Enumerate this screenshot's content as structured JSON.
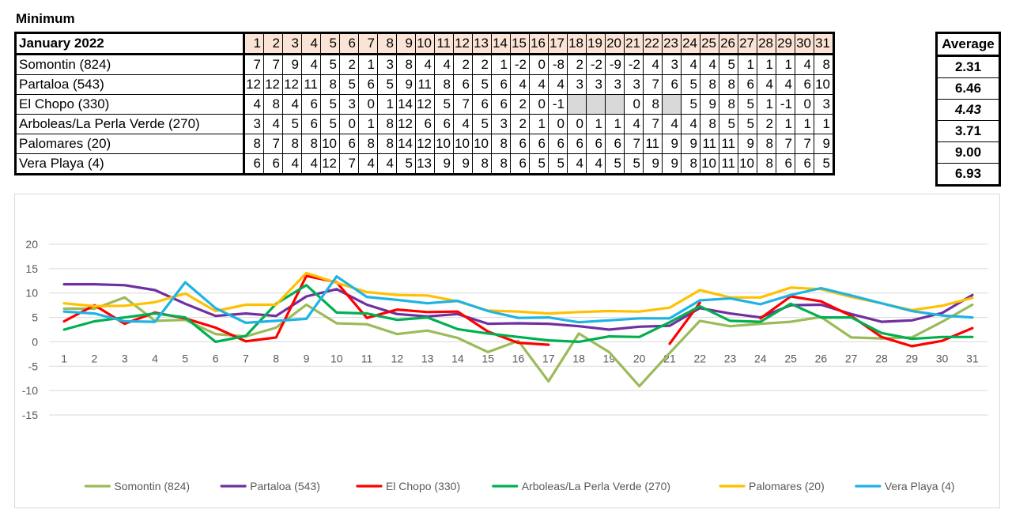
{
  "title": "Minimum",
  "table": {
    "header_label": "January 2022",
    "days": [
      "1",
      "2",
      "3",
      "4",
      "5",
      "6",
      "7",
      "8",
      "9",
      "10",
      "11",
      "12",
      "13",
      "14",
      "15",
      "16",
      "17",
      "18",
      "19",
      "20",
      "21",
      "22",
      "23",
      "24",
      "25",
      "26",
      "27",
      "28",
      "29",
      "30",
      "31"
    ],
    "average_label": "Average",
    "rows": [
      {
        "name": "Somontin (824)",
        "values": [
          "7",
          "7",
          "9",
          "4",
          "5",
          "2",
          "1",
          "3",
          "8",
          "4",
          "4",
          "2",
          "2",
          "1",
          "-2",
          "0",
          "-8",
          "2",
          "-2",
          "-9",
          "-2",
          "4",
          "3",
          "4",
          "4",
          "5",
          "1",
          "1",
          "1",
          "4",
          "8"
        ],
        "average": "2.31",
        "average_italic": false
      },
      {
        "name": "Partaloa (543)",
        "values": [
          "12",
          "12",
          "12",
          "11",
          "8",
          "5",
          "6",
          "5",
          "9",
          "11",
          "8",
          "6",
          "5",
          "6",
          "4",
          "4",
          "4",
          "3",
          "3",
          "3",
          "3",
          "7",
          "6",
          "5",
          "8",
          "8",
          "6",
          "4",
          "4",
          "6",
          "10"
        ],
        "average": "6.46",
        "average_italic": false
      },
      {
        "name": "El Chopo (330)",
        "values": [
          "4",
          "8",
          "4",
          "6",
          "5",
          "3",
          "0",
          "1",
          "14",
          "12",
          "5",
          "7",
          "6",
          "6",
          "2",
          "0",
          "-1",
          "",
          "",
          "",
          "0",
          "8",
          "",
          "5",
          "9",
          "8",
          "5",
          "1",
          "-1",
          "0",
          "3"
        ],
        "average": "4.43",
        "average_italic": true
      },
      {
        "name": "Arboleas/La Perla Verde (270)",
        "values": [
          "3",
          "4",
          "5",
          "6",
          "5",
          "0",
          "1",
          "8",
          "12",
          "6",
          "6",
          "4",
          "5",
          "3",
          "2",
          "1",
          "0",
          "0",
          "1",
          "1",
          "4",
          "7",
          "4",
          "4",
          "8",
          "5",
          "5",
          "2",
          "1",
          "1",
          "1"
        ],
        "average": "3.71",
        "average_italic": false
      },
      {
        "name": "Palomares (20)",
        "values": [
          "8",
          "7",
          "8",
          "8",
          "10",
          "6",
          "8",
          "8",
          "14",
          "12",
          "10",
          "10",
          "10",
          "8",
          "6",
          "6",
          "6",
          "6",
          "6",
          "6",
          "7",
          "11",
          "9",
          "9",
          "11",
          "11",
          "9",
          "8",
          "7",
          "7",
          "9"
        ],
        "average": "9.00",
        "average_italic": false
      },
      {
        "name": "Vera Playa (4)",
        "values": [
          "6",
          "6",
          "4",
          "4",
          "12",
          "7",
          "4",
          "4",
          "5",
          "13",
          "9",
          "9",
          "8",
          "8",
          "6",
          "5",
          "5",
          "4",
          "4",
          "5",
          "5",
          "9",
          "9",
          "8",
          "10",
          "11",
          "10",
          "8",
          "6",
          "6",
          "5"
        ],
        "average": "6.93",
        "average_italic": false
      }
    ]
  },
  "chart_data": {
    "type": "line",
    "title": "",
    "xlabel": "",
    "ylabel": "",
    "x": [
      1,
      2,
      3,
      4,
      5,
      6,
      7,
      8,
      9,
      10,
      11,
      12,
      13,
      14,
      15,
      16,
      17,
      18,
      19,
      20,
      21,
      22,
      23,
      24,
      25,
      26,
      27,
      28,
      29,
      30,
      31
    ],
    "x_ticks": [
      "1",
      "2",
      "3",
      "4",
      "5",
      "6",
      "7",
      "8",
      "9",
      "10",
      "11",
      "12",
      "13",
      "14",
      "15",
      "16",
      "17",
      "18",
      "19",
      "20",
      "21",
      "22",
      "23",
      "24",
      "25",
      "26",
      "27",
      "28",
      "29",
      "30",
      "31"
    ],
    "ylim": [
      -15,
      20
    ],
    "y_ticks": [
      20,
      15,
      10,
      5,
      0,
      -5,
      -10,
      -15
    ],
    "y_tick_labels": [
      "20",
      "15",
      "10",
      "5",
      "0",
      "-5",
      "-10",
      "-15"
    ],
    "grid": true,
    "legend_position": "bottom",
    "series": [
      {
        "name": "Somontin (824)",
        "color": "#9bbb59",
        "values": [
          6.8,
          6.8,
          9.1,
          4.3,
          4.5,
          1.6,
          1.1,
          2.9,
          7.6,
          3.8,
          3.6,
          1.6,
          2.3,
          0.8,
          -2.1,
          0.2,
          -8.1,
          1.7,
          -2.1,
          -9.1,
          -2.3,
          4.3,
          3.2,
          3.7,
          4.1,
          5.1,
          0.9,
          0.7,
          0.9,
          4.1,
          7.6
        ]
      },
      {
        "name": "Partaloa (543)",
        "color": "#7030a0",
        "values": [
          11.8,
          11.8,
          11.6,
          10.6,
          7.8,
          5.3,
          5.8,
          5.3,
          9.3,
          10.8,
          7.6,
          5.7,
          5.2,
          5.7,
          3.7,
          3.8,
          3.7,
          3.2,
          2.5,
          3.1,
          3.3,
          6.9,
          5.8,
          5.0,
          7.5,
          7.6,
          5.7,
          4.1,
          4.4,
          5.9,
          9.6
        ]
      },
      {
        "name": "El Chopo (330)",
        "color": "#ff0000",
        "values": [
          4.2,
          7.5,
          3.7,
          6.0,
          4.8,
          2.9,
          0.1,
          0.9,
          13.5,
          12.2,
          4.9,
          6.6,
          6.1,
          6.2,
          2.1,
          -0.2,
          -0.6,
          null,
          null,
          null,
          -0.4,
          8.0,
          null,
          4.8,
          9.3,
          8.3,
          5.3,
          1.0,
          -0.9,
          0.2,
          2.8
        ]
      },
      {
        "name": "Arboleas/La Perla Verde (270)",
        "color": "#00b050",
        "values": [
          2.5,
          4.2,
          5.0,
          5.8,
          5.0,
          0.0,
          1.2,
          7.8,
          11.6,
          6.0,
          5.8,
          4.5,
          5.0,
          2.6,
          1.7,
          1.0,
          0.3,
          0.0,
          1.1,
          1.0,
          4.0,
          7.3,
          4.3,
          4.1,
          7.8,
          5.0,
          5.0,
          1.8,
          0.6,
          1.0,
          1.0
        ]
      },
      {
        "name": "Palomares (20)",
        "color": "#ffc000",
        "values": [
          7.9,
          7.3,
          7.4,
          8.1,
          9.9,
          6.3,
          7.6,
          7.6,
          14.1,
          12.1,
          10.2,
          9.6,
          9.5,
          8.3,
          6.4,
          6.2,
          5.8,
          6.1,
          6.3,
          6.2,
          7.0,
          10.6,
          9.1,
          9.1,
          11.1,
          10.8,
          9.2,
          7.9,
          6.5,
          7.4,
          9.0
        ]
      },
      {
        "name": "Vera Playa (4)",
        "color": "#1fb3e4",
        "values": [
          6.2,
          5.8,
          4.2,
          4.1,
          12.2,
          6.9,
          3.9,
          4.3,
          4.7,
          13.4,
          9.2,
          8.6,
          7.9,
          8.4,
          6.3,
          4.9,
          5.0,
          4.0,
          4.4,
          4.8,
          4.8,
          8.5,
          8.9,
          7.7,
          9.6,
          11.0,
          9.5,
          7.9,
          6.3,
          5.4,
          5.0
        ]
      }
    ]
  }
}
